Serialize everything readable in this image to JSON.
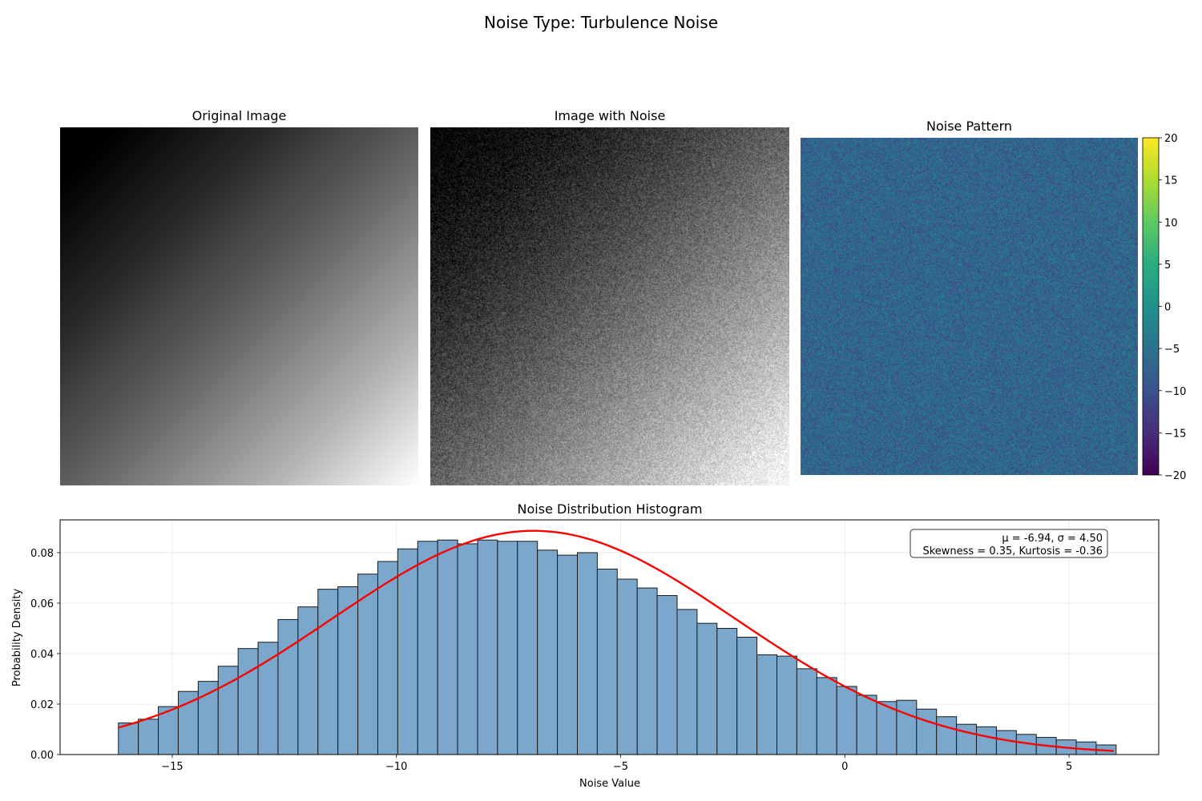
{
  "suptitle": "Noise Type: Turbulence Noise",
  "panels": {
    "original_title": "Original Image",
    "noisy_title": "Image with Noise",
    "noise_title": "Noise Pattern"
  },
  "colorbar": {
    "colormap": "viridis",
    "ticks": [
      "20",
      "15",
      "10",
      "5",
      "0",
      "−5",
      "−10",
      "−15",
      "−20"
    ],
    "range": [
      -20,
      20
    ]
  },
  "chart_data": {
    "type": "bar",
    "title": "Noise Distribution Histogram",
    "xlabel": "Noise Value",
    "ylabel": "Probability Density",
    "xlim": [
      -17.5,
      7.0
    ],
    "ylim": [
      0,
      0.093
    ],
    "xticks": [
      -15,
      -10,
      -5,
      0,
      5
    ],
    "xtick_labels": [
      "−15",
      "−10",
      "−5",
      "0",
      "5"
    ],
    "yticks": [
      0,
      0.02,
      0.04,
      0.06,
      0.08
    ],
    "ytick_labels": [
      "0.00",
      "0.02",
      "0.04",
      "0.06",
      "0.08"
    ],
    "grid": true,
    "bin_start": -16.2,
    "bin_width": 0.445,
    "values": [
      0.0125,
      0.014,
      0.019,
      0.025,
      0.029,
      0.035,
      0.042,
      0.0445,
      0.0535,
      0.0585,
      0.0655,
      0.0665,
      0.0715,
      0.0765,
      0.0815,
      0.0845,
      0.085,
      0.0835,
      0.085,
      0.0845,
      0.0845,
      0.081,
      0.079,
      0.08,
      0.0735,
      0.0695,
      0.066,
      0.063,
      0.0575,
      0.052,
      0.05,
      0.0465,
      0.0395,
      0.039,
      0.034,
      0.0305,
      0.027,
      0.0235,
      0.021,
      0.0215,
      0.018,
      0.015,
      0.012,
      0.011,
      0.0095,
      0.008,
      0.0068,
      0.0058,
      0.005,
      0.0038
    ],
    "bar_color": "#7ba7cc",
    "bar_edge": "#1a1a1a",
    "fit": {
      "mu": -6.94,
      "sigma": 4.5,
      "color": "#ff0000",
      "x_range": [
        -16.2,
        6.0
      ]
    },
    "annotation": [
      "μ = -6.94, σ = 4.50",
      "Skewness = 0.35, Kurtosis = -0.36"
    ]
  }
}
